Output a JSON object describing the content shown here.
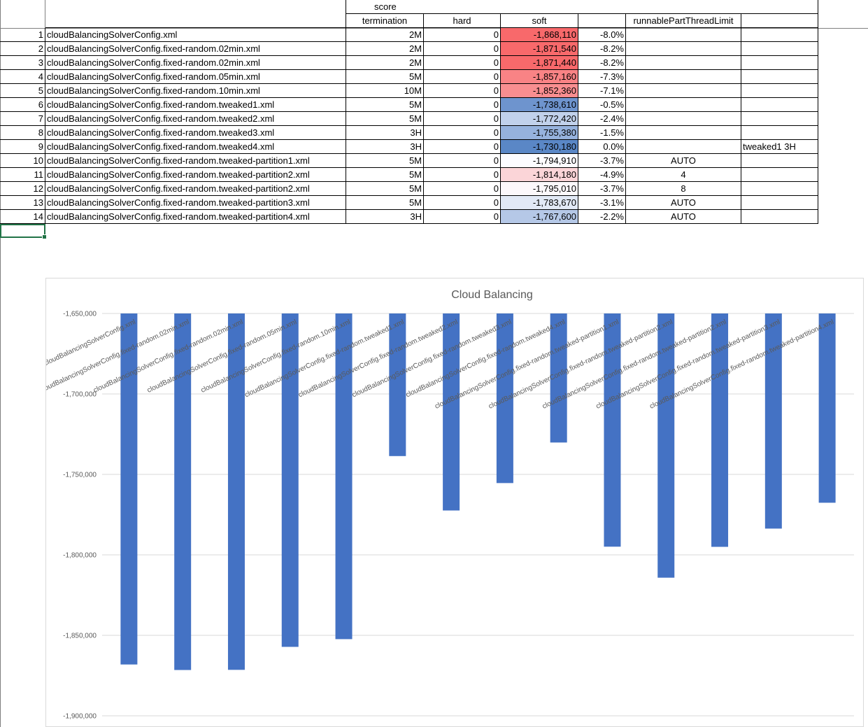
{
  "table": {
    "group_header": "score",
    "columns": [
      "termination",
      "hard",
      "soft",
      "",
      "runnablePartThreadLimit",
      ""
    ],
    "rows": [
      {
        "n": "1",
        "name": "cloudBalancingSolverConfig.xml",
        "termination": "2M",
        "hard": "0",
        "soft": "-1,868,110",
        "pct": "-8.0%",
        "limit": "",
        "note": "",
        "color": "#f8696b"
      },
      {
        "n": "2",
        "name": "cloudBalancingSolverConfig.fixed-random.02min.xml",
        "termination": "2M",
        "hard": "0",
        "soft": "-1,871,540",
        "pct": "-8.2%",
        "limit": "",
        "note": "",
        "color": "#f8696b"
      },
      {
        "n": "3",
        "name": "cloudBalancingSolverConfig.fixed-random.02min.xml",
        "termination": "2M",
        "hard": "0",
        "soft": "-1,871,440",
        "pct": "-8.2%",
        "limit": "",
        "note": "",
        "color": "#f8696b"
      },
      {
        "n": "4",
        "name": "cloudBalancingSolverConfig.fixed-random.05min.xml",
        "termination": "5M",
        "hard": "0",
        "soft": "-1,857,160",
        "pct": "-7.3%",
        "limit": "",
        "note": "",
        "color": "#f98385"
      },
      {
        "n": "5",
        "name": "cloudBalancingSolverConfig.fixed-random.10min.xml",
        "termination": "10M",
        "hard": "0",
        "soft": "-1,852,360",
        "pct": "-7.1%",
        "limit": "",
        "note": "",
        "color": "#f98e90"
      },
      {
        "n": "6",
        "name": "cloudBalancingSolverConfig.fixed-random.tweaked1.xml",
        "termination": "5M",
        "hard": "0",
        "soft": "-1,738,610",
        "pct": "-0.5%",
        "limit": "",
        "note": "",
        "color": "#6e94ce"
      },
      {
        "n": "7",
        "name": "cloudBalancingSolverConfig.fixed-random.tweaked2.xml",
        "termination": "5M",
        "hard": "0",
        "soft": "-1,772,420",
        "pct": "-2.4%",
        "limit": "",
        "note": "",
        "color": "#c1d1eb"
      },
      {
        "n": "8",
        "name": "cloudBalancingSolverConfig.fixed-random.tweaked3.xml",
        "termination": "3H",
        "hard": "0",
        "soft": "-1,755,380",
        "pct": "-1.5%",
        "limit": "",
        "note": "",
        "color": "#96b2dd"
      },
      {
        "n": "9",
        "name": "cloudBalancingSolverConfig.fixed-random.tweaked4.xml",
        "termination": "3H",
        "hard": "0",
        "soft": "-1,730,180",
        "pct": "0.0%",
        "limit": "",
        "note": "tweaked1 3H",
        "color": "#5a87c6"
      },
      {
        "n": "10",
        "name": "cloudBalancingSolverConfig.fixed-random.tweaked-partition1.xml",
        "termination": "5M",
        "hard": "0",
        "soft": "-1,794,910",
        "pct": "-3.7%",
        "limit": "AUTO",
        "note": "",
        "color": "#fcfcff"
      },
      {
        "n": "11",
        "name": "cloudBalancingSolverConfig.fixed-random.tweaked-partition2.xml",
        "termination": "5M",
        "hard": "0",
        "soft": "-1,814,180",
        "pct": "-4.9%",
        "limit": "4",
        "note": "",
        "color": "#fbd5d8"
      },
      {
        "n": "12",
        "name": "cloudBalancingSolverConfig.fixed-random.tweaked-partition2.xml",
        "termination": "5M",
        "hard": "0",
        "soft": "-1,795,010",
        "pct": "-3.7%",
        "limit": "8",
        "note": "",
        "color": "#fcf8fb"
      },
      {
        "n": "13",
        "name": "cloudBalancingSolverConfig.fixed-random.tweaked-partition3.xml",
        "termination": "5M",
        "hard": "0",
        "soft": "-1,783,670",
        "pct": "-3.1%",
        "limit": "AUTO",
        "note": "",
        "color": "#e2e9f6"
      },
      {
        "n": "14",
        "name": "cloudBalancingSolverConfig.fixed-random.tweaked-partition4.xml",
        "termination": "3H",
        "hard": "0",
        "soft": "-1,767,600",
        "pct": "-2.2%",
        "limit": "AUTO",
        "note": "",
        "color": "#b5c8e7"
      }
    ]
  },
  "chart_data": {
    "type": "bar",
    "title": "Cloud Balancing",
    "xlabel": "",
    "ylabel": "",
    "ylim": [
      -1900000,
      -1650000
    ],
    "yticks": [
      -1650000,
      -1700000,
      -1750000,
      -1800000,
      -1850000,
      -1900000
    ],
    "ytick_labels": [
      "-1,650,000",
      "-1,700,000",
      "-1,750,000",
      "-1,800,000",
      "-1,850,000",
      "-1,900,000"
    ],
    "grid": true,
    "bar_color": "#4472c4",
    "categories": [
      "cloudBalancingSolverConfig.xml",
      "cloudBalancingSolverConfig.fixed-random.02min.xml",
      "cloudBalancingSolverConfig.fixed-random.02min.xml",
      "cloudBalancingSolverConfig.fixed-random.05min.xml",
      "cloudBalancingSolverConfig.fixed-random.10min.xml",
      "cloudBalancingSolverConfig.fixed-random.tweaked1.xml",
      "cloudBalancingSolverConfig.fixed-random.tweaked2.xml",
      "cloudBalancingSolverConfig.fixed-random.tweaked3.xml",
      "cloudBalancingSolverConfig.fixed-random.tweaked4.xml",
      "cloudBalancingSolverConfig.fixed-random.tweaked-partition1.xml",
      "cloudBalancingSolverConfig.fixed-random.tweaked-partition2.xml",
      "cloudBalancingSolverConfig.fixed-random.tweaked-partition2.xml",
      "cloudBalancingSolverConfig.fixed-random.tweaked-partition3.xml",
      "cloudBalancingSolverConfig.fixed-random.tweaked-partition4.xml"
    ],
    "values": [
      -1868110,
      -1871540,
      -1871440,
      -1857160,
      -1852360,
      -1738610,
      -1772420,
      -1755380,
      -1730180,
      -1794910,
      -1814180,
      -1795010,
      -1783670,
      -1767600
    ]
  }
}
